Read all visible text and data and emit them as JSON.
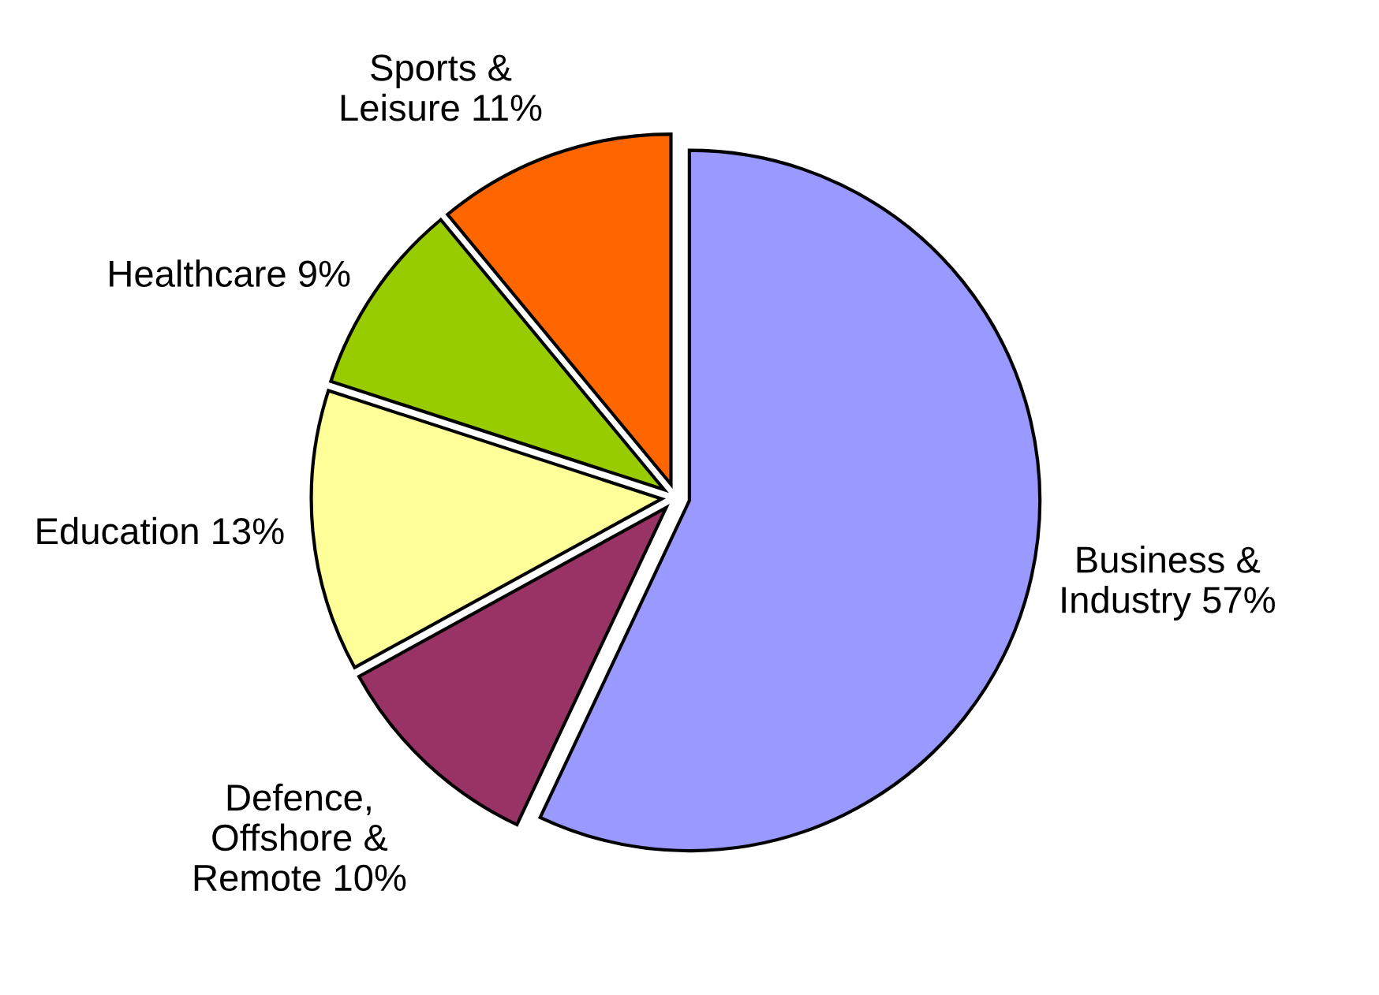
{
  "chart_data": {
    "type": "pie",
    "categories": [
      "Business &\nIndustry",
      "Defence,\nOffshore &\nRemote",
      "Education",
      "Healthcare",
      "Sports &\nLeisure"
    ],
    "values": [
      57,
      10,
      13,
      9,
      11
    ],
    "value_labels": [
      "57%",
      "10%",
      "13%",
      "9%",
      "11%"
    ],
    "colors": [
      "#9999ff",
      "#993366",
      "#ffff99",
      "#99cc00",
      "#ff6600"
    ],
    "legend": false
  }
}
